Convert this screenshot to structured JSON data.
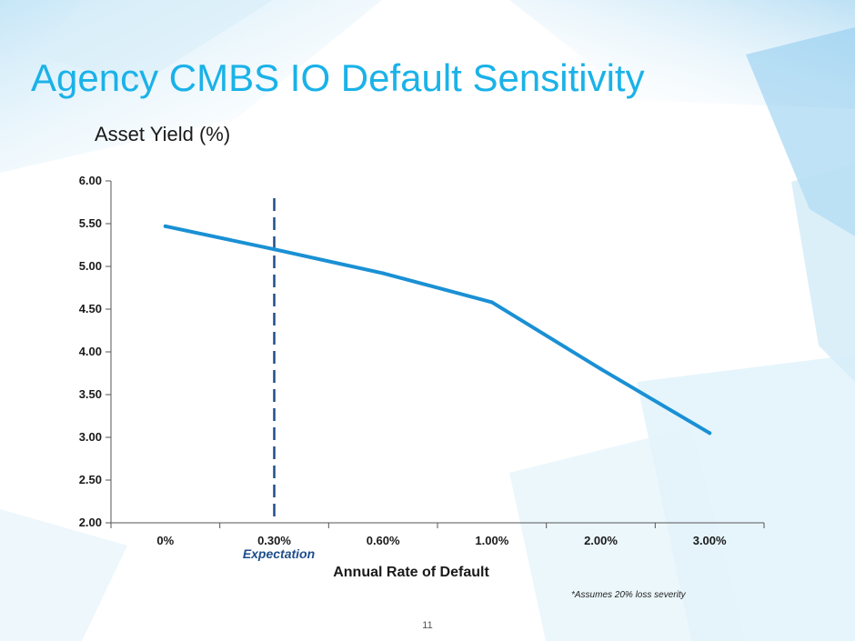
{
  "slide": {
    "title": "Agency CMBS IO Default Sensitivity",
    "subtitle": "Asset Yield (%)",
    "footnote": "*Assumes 20% loss severity",
    "page_number": "11"
  },
  "colors": {
    "title": "#1ab2e8",
    "line": "#1a90d4",
    "expectation": "#1f4e8c",
    "axis": "#555555",
    "text": "#1a1a1a"
  },
  "chart_data": {
    "type": "line",
    "title": "Asset Yield (%)",
    "xlabel": "Annual Rate of Default",
    "ylabel": "",
    "categories": [
      "0%",
      "0.30%",
      "0.60%",
      "1.00%",
      "2.00%",
      "3.00%"
    ],
    "series": [
      {
        "name": "Asset Yield",
        "values": [
          5.47,
          5.2,
          4.92,
          4.58,
          3.8,
          3.05
        ]
      }
    ],
    "ylim": [
      2.0,
      6.0
    ],
    "yticks": [
      "2.00",
      "2.50",
      "3.00",
      "3.50",
      "4.00",
      "4.50",
      "5.00",
      "5.50",
      "6.00"
    ],
    "grid": false,
    "annotations": [
      {
        "text": "Expectation",
        "category": "0.30%",
        "style": "dashed vertical line"
      }
    ]
  }
}
